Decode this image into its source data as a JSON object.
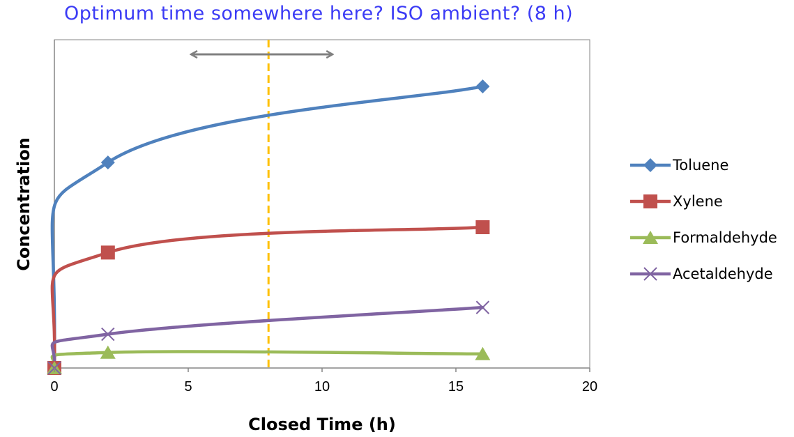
{
  "chart_data": {
    "type": "line",
    "title": "Optimum time somewhere here? ISO ambient? (8 h)",
    "xlabel": "Closed Time (h)",
    "ylabel": "Concentration",
    "xlim": [
      0,
      20
    ],
    "xticks": [
      0,
      5,
      10,
      15,
      20
    ],
    "ylim": [
      0,
      100
    ],
    "y_tick_labels_shown": false,
    "grid": false,
    "legend": "right",
    "reference_line": {
      "x": 8,
      "color": "#FFC000",
      "style": "dashed"
    },
    "annotation_arrow": {
      "x_from": 5,
      "x_to": 10.5,
      "style": "double-headed",
      "color": "#808080"
    },
    "series": [
      {
        "name": "Toluene",
        "color": "#4F81BD",
        "marker": "diamond",
        "x": [
          0,
          2,
          16
        ],
        "values": [
          0,
          73,
          100
        ]
      },
      {
        "name": "Xylene",
        "color": "#C0504D",
        "marker": "square",
        "x": [
          0,
          2,
          16
        ],
        "values": [
          0,
          41,
          50
        ]
      },
      {
        "name": "Formaldehyde",
        "color": "#9BBB59",
        "marker": "triangle",
        "x": [
          0,
          2,
          16
        ],
        "values": [
          0,
          5.5,
          5
        ]
      },
      {
        "name": "Acetaldehyde",
        "color": "#8064A2",
        "marker": "x",
        "x": [
          0,
          2,
          16
        ],
        "values": [
          0,
          12,
          21.5
        ]
      }
    ]
  }
}
